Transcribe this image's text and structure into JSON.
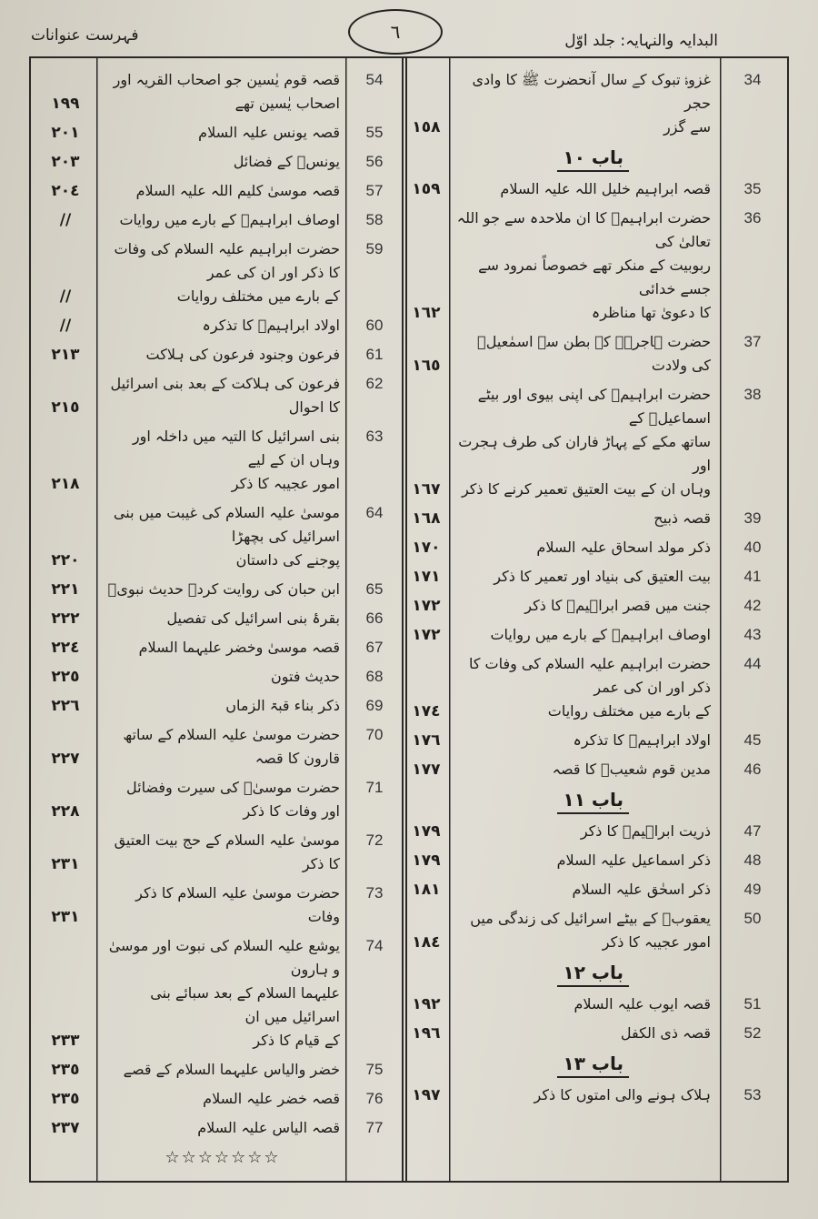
{
  "header": {
    "right_title": "البدایہ والنہایہ: جلد اوّل",
    "page_number": "٦",
    "left_title": "فہرست عنوانات"
  },
  "right": {
    "entries": [
      {
        "number": "34",
        "lines": [
          "غزوۂ تبوک کے سال آنحضرت ﷺ کا وادی حجر",
          "سے گزر"
        ],
        "page": "١٥٨"
      },
      {
        "heading": "باب ١٠"
      },
      {
        "number": "35",
        "lines": [
          "قصہ ابراہیم خلیل اللہ علیہ السلام"
        ],
        "page": "١٥٩"
      },
      {
        "number": "36",
        "lines": [
          "حضرت ابراہیمؑ کا ان ملاحدہ سے جو اللہ تعالیٰ کی",
          "ربوبیت کے منکر تھے خصوصاً نمرود سے جسے خدائی",
          "کا دعویٰ تھا مناظرہ"
        ],
        "page": "١٦٢"
      },
      {
        "number": "37",
        "lines": [
          "حضرت ہاجرہؑ کے بطن سے اسمٰعیلؑ کی ولادت"
        ],
        "page": "١٦٥"
      },
      {
        "number": "38",
        "lines": [
          "حضرت ابراہیمؑ کی اپنی بیوی اور بیٹے اسماعیلؑ کے",
          "ساتھ مکے کے پہاڑ فاران کی طرف ہجرت اور",
          "وہاں ان کے بیت العتیق تعمیر کرنے کا ذکر"
        ],
        "page": "١٦٧"
      },
      {
        "number": "39",
        "lines": [
          "قصہ ذبیح"
        ],
        "page": "١٦٨"
      },
      {
        "number": "40",
        "lines": [
          "ذکر مولد اسحاق علیہ السلام"
        ],
        "page": "١٧٠"
      },
      {
        "number": "41",
        "lines": [
          "بیت العتیق کی بنیاد اور تعمیر کا ذکر"
        ],
        "page": "١٧١"
      },
      {
        "number": "42",
        "lines": [
          "جنت میں قصر ابراہیمؑ کا ذکر"
        ],
        "page": "١٧٢"
      },
      {
        "number": "43",
        "lines": [
          "اوصاف ابراہیمؑ کے بارے میں روایات"
        ],
        "page": "١٧٢"
      },
      {
        "number": "44",
        "lines": [
          "حضرت ابراہیم علیہ السلام کی وفات کا ذکر اور ان کی عمر",
          "کے بارے میں مختلف روایات"
        ],
        "page": "١٧٤"
      },
      {
        "number": "45",
        "lines": [
          "اولاد ابراہیمؑ کا تذکرہ"
        ],
        "page": "١٧٦"
      },
      {
        "number": "46",
        "lines": [
          "مدین قوم شعیبؑ کا قصہ"
        ],
        "page": "١٧٧"
      },
      {
        "heading": "باب ١١"
      },
      {
        "number": "47",
        "lines": [
          "ذریت ابراہیمؑ کا ذکر"
        ],
        "page": "١٧٩"
      },
      {
        "number": "48",
        "lines": [
          "ذکر اسماعیل علیہ السلام"
        ],
        "page": "١٧٩"
      },
      {
        "number": "49",
        "lines": [
          "ذکر اسحٰق علیہ السلام"
        ],
        "page": "١٨١"
      },
      {
        "number": "50",
        "lines": [
          "یعقوبؑ کے بیٹے اسرائیل کی زندگی میں امور عجیبہ کا ذکر"
        ],
        "page": "١٨٤"
      },
      {
        "heading": "باب ١٢"
      },
      {
        "number": "51",
        "lines": [
          "قصہ ایوب علیہ السلام"
        ],
        "page": "١٩٢"
      },
      {
        "number": "52",
        "lines": [
          "قصہ ذی الکفل"
        ],
        "page": "١٩٦"
      },
      {
        "heading": "باب ١٣"
      },
      {
        "number": "53",
        "lines": [
          "ہلاک ہونے والی امتوں کا ذکر"
        ],
        "page": "١٩٧"
      }
    ]
  },
  "left": {
    "entries": [
      {
        "number": "54",
        "lines": [
          "قصہ قوم یٰسین جو اصحاب القریہ اور اصحاب یٰسین تھے"
        ],
        "page": "١٩٩"
      },
      {
        "number": "55",
        "lines": [
          "قصہ یونس علیہ السلام"
        ],
        "page": "٢٠١"
      },
      {
        "number": "56",
        "lines": [
          "یونسؑ کے فضائل"
        ],
        "page": "٢٠٣"
      },
      {
        "number": "57",
        "lines": [
          "قصہ موسیٰ کلیم اللہ علیہ السلام"
        ],
        "page": "٢٠٤"
      },
      {
        "number": "58",
        "lines": [
          "اوصاف ابراہیمؑ کے بارے میں روایات"
        ],
        "page": "//"
      },
      {
        "number": "59",
        "lines": [
          "حضرت ابراہیم علیہ السلام کی وفات کا ذکر اور ان کی عمر",
          "کے بارے میں مختلف روایات"
        ],
        "page": "//"
      },
      {
        "number": "60",
        "lines": [
          "اولاد ابراہیمؑ کا تذکرہ"
        ],
        "page": "//"
      },
      {
        "number": "61",
        "lines": [
          "فرعون وجنود فرعون کی ہلاکت"
        ],
        "page": "٢١٣"
      },
      {
        "number": "62",
        "lines": [
          "فرعون کی ہلاکت کے بعد بنی اسرائیل کا احوال"
        ],
        "page": "٢١٥"
      },
      {
        "number": "63",
        "lines": [
          "بنی اسرائیل کا التیہ میں داخلہ اور وہاں ان کے لیے",
          "امور عجیبہ کا ذکر"
        ],
        "page": "٢١٨"
      },
      {
        "number": "64",
        "lines": [
          "موسیٰ علیہ السلام کی غیبت میں بنی اسرائیل کی بچھڑا",
          "پوجنے کی داستان"
        ],
        "page": "٢٢٠"
      },
      {
        "number": "65",
        "lines": [
          "ابن حبان کی روایت کردہ حدیث نبویؐ"
        ],
        "page": "٢٢١"
      },
      {
        "number": "66",
        "lines": [
          "بقرۂ بنی اسرائیل کی تفصیل"
        ],
        "page": "٢٢٢"
      },
      {
        "number": "67",
        "lines": [
          "قصہ موسیٰ وخضر علیہما السلام"
        ],
        "page": "٢٢٤"
      },
      {
        "number": "68",
        "lines": [
          "حدیث فتون"
        ],
        "page": "٢٢٥"
      },
      {
        "number": "69",
        "lines": [
          "ذکر بناء قبۃ الزماں"
        ],
        "page": "٢٢٦"
      },
      {
        "number": "70",
        "lines": [
          "حضرت موسیٰ علیہ السلام کے ساتھ قارون کا قصہ"
        ],
        "page": "٢٢٧"
      },
      {
        "number": "71",
        "lines": [
          "حضرت موسیٰؑ کی سیرت وفضائل اور وفات کا ذکر"
        ],
        "page": "٢٢٨"
      },
      {
        "number": "72",
        "lines": [
          "موسیٰ علیہ السلام کے حج بیت العتیق کا ذکر"
        ],
        "page": "٢٣١"
      },
      {
        "number": "73",
        "lines": [
          "حضرت موسیٰ علیہ السلام کا ذکر وفات"
        ],
        "page": "٢٣١"
      },
      {
        "number": "74",
        "lines": [
          "یوشع علیہ السلام کی نبوت اور موسیٰ و ہارون",
          "علیہما السلام کے بعد سبائے بنی اسرائیل میں ان",
          "کے قیام کا ذکر"
        ],
        "page": "٢٣٣"
      },
      {
        "number": "75",
        "lines": [
          "خضر والیاس علیہما السلام کے قصے"
        ],
        "page": "٢٣٥"
      },
      {
        "number": "76",
        "lines": [
          "قصہ خضر علیہ السلام"
        ],
        "page": "٢٣٥"
      },
      {
        "number": "77",
        "lines": [
          "قصہ الیاس علیہ السلام"
        ],
        "page": "٢٣٧"
      }
    ],
    "end_mark": "☆☆☆☆☆☆☆"
  }
}
